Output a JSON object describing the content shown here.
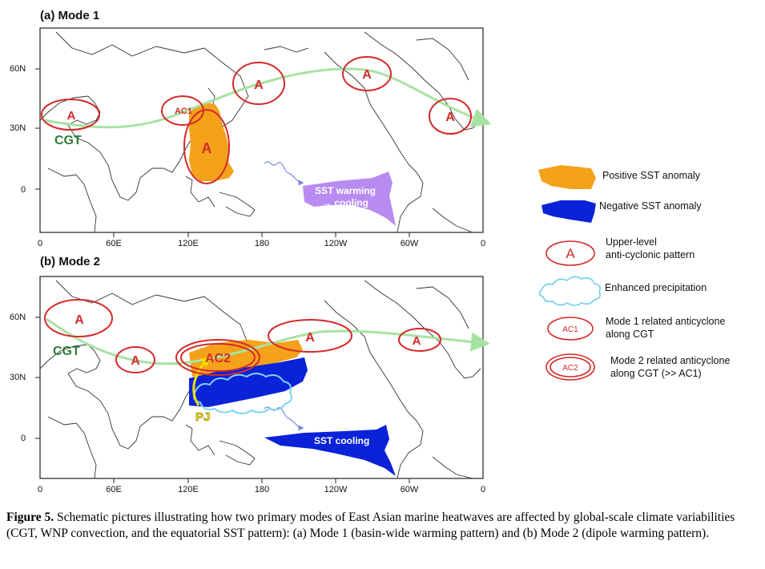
{
  "panels": [
    {
      "title": "(a) Mode 1",
      "lat_labels": [
        "60N",
        "30N",
        "0"
      ],
      "lon_labels": [
        "0",
        "60E",
        "120E",
        "180",
        "120W",
        "60W",
        "0"
      ],
      "teleconnection_label": "CGT",
      "anticyclone_labels": [
        "A",
        "AC1",
        "A",
        "A",
        "A",
        "A"
      ],
      "sst_box_label_line1": "SST warming",
      "sst_box_label_line2": "→ cooling"
    },
    {
      "title": "(b) Mode 2",
      "lat_labels": [
        "60N",
        "30N",
        "0"
      ],
      "lon_labels": [
        "0",
        "60E",
        "120E",
        "180",
        "120W",
        "60W",
        "0"
      ],
      "teleconnection_label": "CGT",
      "anticyclone_labels": [
        "A",
        "A",
        "AC2",
        "A",
        "A"
      ],
      "pj_label": "PJ",
      "sst_box_label": "SST cooling"
    }
  ],
  "legend": {
    "positive_sst": "Positive SST anomaly",
    "negative_sst": "Negative SST anomaly",
    "upper_level_symbol": "A",
    "upper_level_line1": "Upper-level",
    "upper_level_line2": "anti-cyclonic pattern",
    "precip": "Enhanced precipitation",
    "ac1_symbol": "AC1",
    "ac1_line1": "Mode 1 related anticyclone",
    "ac1_line2": "along CGT",
    "ac2_symbol": "AC2",
    "ac2_line1": "Mode 2 related anticyclone",
    "ac2_line2": "along CGT (>> AC1)"
  },
  "caption": {
    "label": "Figure 5.",
    "text": " Schematic pictures illustrating how two primary modes of East Asian marine heatwaves are affected by global-scale climate variabilities (CGT, WNP convection, and the equatorial SST pattern): (a) Mode 1 (basin-wide warming pattern) and (b) Mode 2 (dipole warming pattern)."
  },
  "colors": {
    "positive_sst": "#f5a21b",
    "negative_sst": "#0a22d8",
    "sst_warming_cooling": "#b07ef0",
    "anticyclone": "#d42a2a",
    "cgt_arrow": "#a6e3a2",
    "precip": "#7fd3ef",
    "pj": "#f0e000"
  }
}
